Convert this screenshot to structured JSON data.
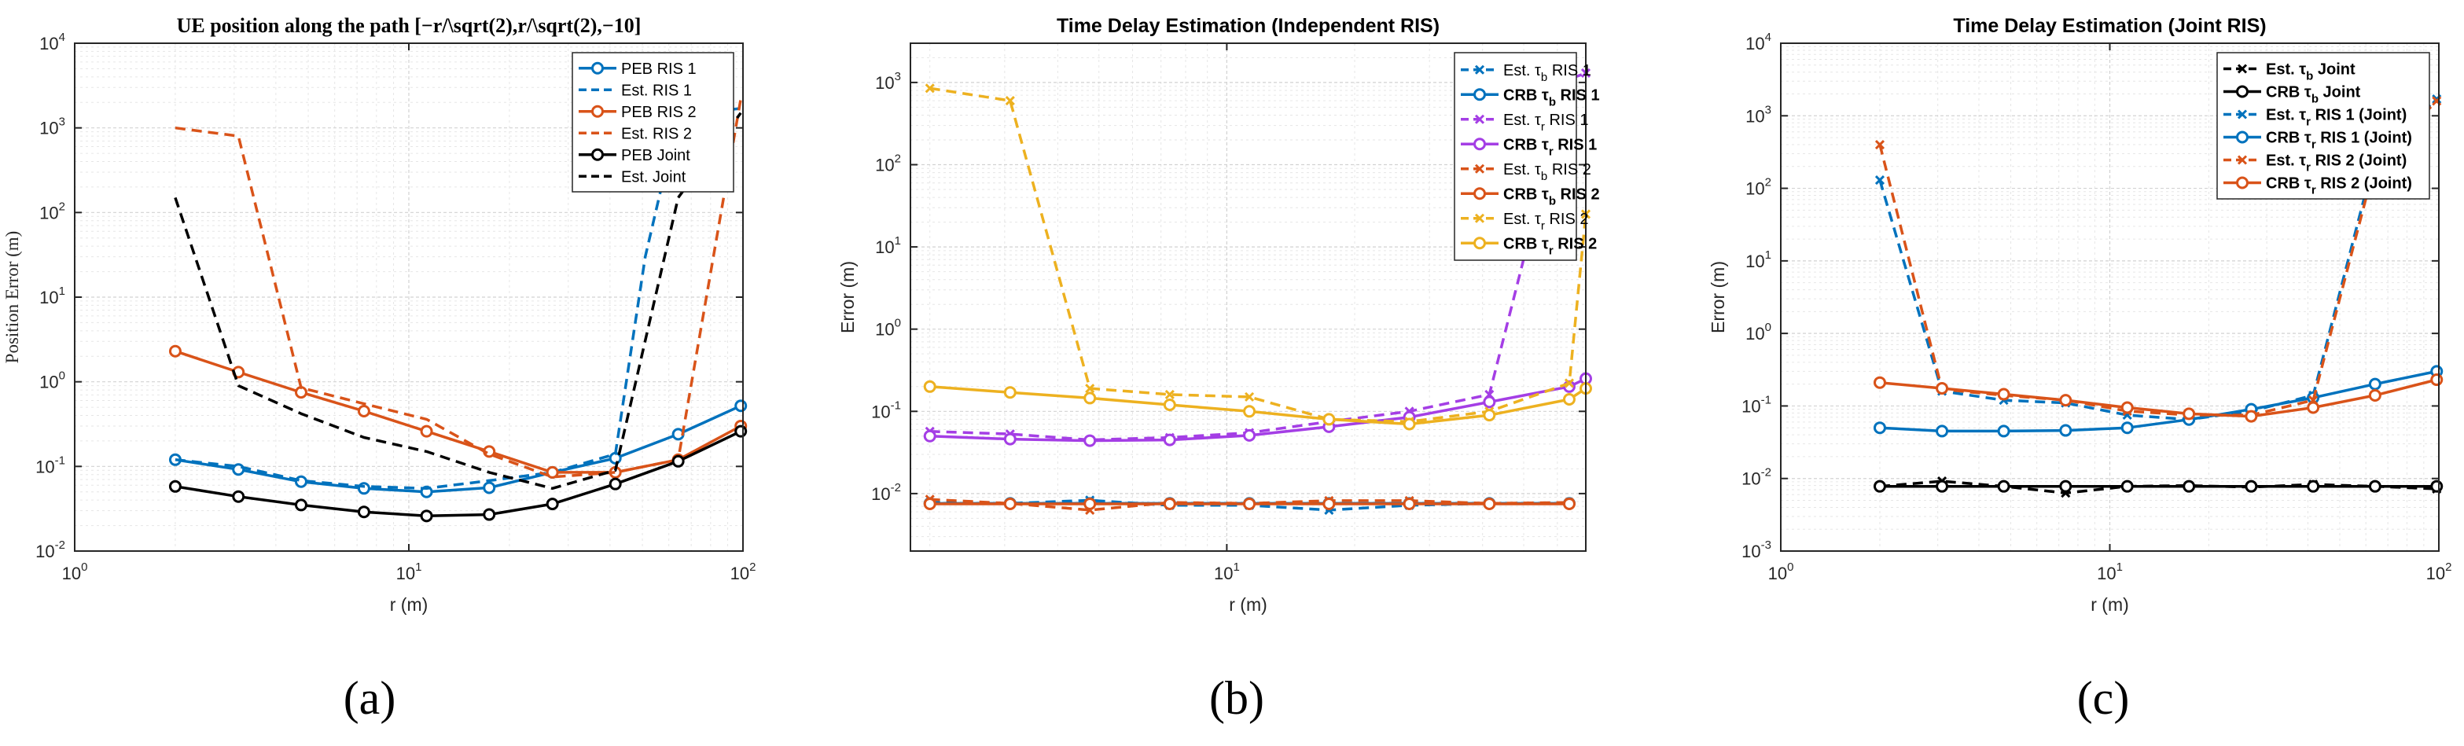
{
  "colors": {
    "blue": "#0072BD",
    "orange": "#D95319",
    "black": "#000000",
    "purple": "#A43EE5",
    "yellow": "#EDB120"
  },
  "panel_labels": [
    "(a)",
    "(b)",
    "(c)"
  ],
  "chart_data": [
    {
      "type": "line",
      "title": "UE position along the path [−r/\\sqrt(2),r/\\sqrt(2),−10]",
      "xlabel": "r (m)",
      "ylabel": "Position Error (m)",
      "xscale": "log",
      "yscale": "log",
      "xlim": [
        1,
        100
      ],
      "ylim": [
        0.01,
        10000
      ],
      "xticks": [
        {
          "base": "10",
          "exp": "0"
        },
        {
          "base": "10",
          "exp": "1"
        },
        {
          "base": "10",
          "exp": "2"
        }
      ],
      "yticks": [
        {
          "base": "10",
          "exp": "-2"
        },
        {
          "base": "10",
          "exp": "-1"
        },
        {
          "base": "10",
          "exp": "0"
        },
        {
          "base": "10",
          "exp": "1"
        },
        {
          "base": "10",
          "exp": "2"
        },
        {
          "base": "10",
          "exp": "3"
        },
        {
          "base": "10",
          "exp": "4"
        }
      ],
      "legend_position": "top-right",
      "series": [
        {
          "name": "PEB RIS 1",
          "color": "blue",
          "style": "solid",
          "marker": "circle",
          "x": [
            2,
            3.09,
            4.76,
            7.34,
            11.3,
            17.4,
            26.9,
            41.5,
            64,
            98.5
          ],
          "y": [
            0.12,
            0.092,
            0.066,
            0.055,
            0.05,
            0.056,
            0.085,
            0.125,
            0.24,
            0.52
          ]
        },
        {
          "name": "Est. RIS 1",
          "color": "blue",
          "style": "dashed",
          "marker": "none",
          "x": [
            2,
            3.09,
            4.76,
            7.34,
            11.3,
            17.4,
            26.9,
            41.5,
            51,
            64,
            98.5
          ],
          "y": [
            0.12,
            0.1,
            0.068,
            0.058,
            0.055,
            0.068,
            0.085,
            0.14,
            30,
            1400,
            1700
          ]
        },
        {
          "name": "PEB RIS 2",
          "color": "orange",
          "style": "solid",
          "marker": "circle",
          "x": [
            2,
            3.09,
            4.76,
            7.34,
            11.3,
            17.4,
            26.9,
            41.5,
            64,
            98.5
          ],
          "y": [
            2.3,
            1.3,
            0.75,
            0.45,
            0.26,
            0.15,
            0.085,
            0.085,
            0.12,
            0.3
          ]
        },
        {
          "name": "Est. RIS 2",
          "color": "orange",
          "style": "dashed",
          "marker": "none",
          "x": [
            2,
            3.09,
            4.76,
            7.34,
            11.3,
            17.4,
            26.9,
            41.5,
            64,
            98.5
          ],
          "y": [
            1000,
            800,
            0.85,
            0.55,
            0.36,
            0.14,
            0.075,
            0.085,
            0.12,
            2200
          ]
        },
        {
          "name": "PEB Joint",
          "color": "black",
          "style": "solid",
          "marker": "circle",
          "x": [
            2,
            3.09,
            4.76,
            7.34,
            11.3,
            17.4,
            26.9,
            41.5,
            64,
            98.5
          ],
          "y": [
            0.058,
            0.044,
            0.035,
            0.029,
            0.026,
            0.027,
            0.036,
            0.062,
            0.115,
            0.26
          ]
        },
        {
          "name": "Est. Joint",
          "color": "black",
          "style": "dashed",
          "marker": "none",
          "x": [
            2,
            3.09,
            4.76,
            7.34,
            11.3,
            17.4,
            26.9,
            41.5,
            64,
            98.5
          ],
          "y": [
            150,
            0.9,
            0.42,
            0.22,
            0.15,
            0.085,
            0.055,
            0.09,
            150,
            1500
          ]
        }
      ]
    },
    {
      "type": "line",
      "title": "Time Delay Estimation (Independent RIS)",
      "xlabel": "r (m)",
      "ylabel": "Error (m)",
      "xscale": "log",
      "yscale": "log",
      "xlim": [
        1.8,
        70
      ],
      "ylim": [
        0.002,
        3000
      ],
      "xticks": [
        {
          "base": "10",
          "exp": "1"
        }
      ],
      "yticks": [
        {
          "base": "10",
          "exp": "-2"
        },
        {
          "base": "10",
          "exp": "-1"
        },
        {
          "base": "10",
          "exp": "0"
        },
        {
          "base": "10",
          "exp": "1"
        },
        {
          "base": "10",
          "exp": "2"
        },
        {
          "base": "10",
          "exp": "3"
        }
      ],
      "legend_position": "top-right",
      "series": [
        {
          "name": "Est. τ_b RIS 1",
          "label_prefix": "Est. τ",
          "label_sub": "b",
          "label_suffix": " RIS 1",
          "color": "blue",
          "style": "dashed",
          "marker": "cross",
          "x": [
            2,
            3.09,
            4.76,
            7.34,
            11.3,
            17.4,
            26.9,
            41.5,
            64
          ],
          "y": [
            0.0078,
            0.0076,
            0.0083,
            0.0072,
            0.0072,
            0.0063,
            0.0072,
            0.0076,
            0.0076
          ]
        },
        {
          "name": "CRB τ_b RIS 1",
          "label_prefix": "CRB τ",
          "label_sub": "b",
          "label_suffix": " RIS 1",
          "bold": true,
          "color": "blue",
          "style": "solid",
          "marker": "circle",
          "x": [
            2,
            3.09,
            4.76,
            7.34,
            11.3,
            17.4,
            26.9,
            41.5,
            64
          ],
          "y": [
            0.0076,
            0.0076,
            0.0076,
            0.0076,
            0.0076,
            0.0076,
            0.0076,
            0.0076,
            0.0076
          ]
        },
        {
          "name": "Est. τ_r RIS 1",
          "label_prefix": "Est. τ",
          "label_sub": "r",
          "label_suffix": " RIS 1",
          "color": "purple",
          "style": "dashed",
          "marker": "cross",
          "x": [
            2,
            3.09,
            4.76,
            7.34,
            11.3,
            17.4,
            26.9,
            41.5,
            64,
            70
          ],
          "y": [
            0.057,
            0.053,
            0.045,
            0.048,
            0.055,
            0.075,
            0.1,
            0.16,
            1100,
            1300
          ]
        },
        {
          "name": "CRB τ_r RIS 1",
          "label_prefix": "CRB τ",
          "label_sub": "r",
          "label_suffix": " RIS 1",
          "bold": true,
          "color": "purple",
          "style": "solid",
          "marker": "circle",
          "x": [
            2,
            3.09,
            4.76,
            7.34,
            11.3,
            17.4,
            26.9,
            41.5,
            64,
            70
          ],
          "y": [
            0.05,
            0.046,
            0.044,
            0.045,
            0.051,
            0.065,
            0.085,
            0.13,
            0.2,
            0.25
          ]
        },
        {
          "name": "Est. τ_b RIS 2",
          "label_prefix": "Est. τ",
          "label_sub": "b",
          "label_suffix": " RIS 2",
          "color": "orange",
          "style": "dashed",
          "marker": "cross",
          "x": [
            2,
            3.09,
            4.76,
            7.34,
            11.3,
            17.4,
            26.9,
            41.5,
            64
          ],
          "y": [
            0.0085,
            0.0076,
            0.0063,
            0.0078,
            0.0076,
            0.0082,
            0.0082,
            0.0076,
            0.0078
          ]
        },
        {
          "name": "CRB τ_b RIS 2",
          "label_prefix": "CRB τ",
          "label_sub": "b",
          "label_suffix": " RIS 2",
          "bold": true,
          "color": "orange",
          "style": "solid",
          "marker": "circle",
          "x": [
            2,
            3.09,
            4.76,
            7.34,
            11.3,
            17.4,
            26.9,
            41.5,
            64
          ],
          "y": [
            0.0075,
            0.0075,
            0.0075,
            0.0075,
            0.0075,
            0.0075,
            0.0075,
            0.0075,
            0.0075
          ]
        },
        {
          "name": "Est. τ_r RIS 2",
          "label_prefix": "Est. τ",
          "label_sub": "r",
          "label_suffix": " RIS 2",
          "color": "yellow",
          "style": "dashed",
          "marker": "cross",
          "x": [
            2,
            3.09,
            4.76,
            7.34,
            11.3,
            17.4,
            26.9,
            41.5,
            64,
            70
          ],
          "y": [
            850,
            600,
            0.19,
            0.16,
            0.15,
            0.08,
            0.075,
            0.1,
            0.22,
            25
          ]
        },
        {
          "name": "CRB τ_r RIS 2",
          "label_prefix": "CRB τ",
          "label_sub": "r",
          "label_suffix": " RIS 2",
          "bold": true,
          "color": "yellow",
          "style": "solid",
          "marker": "circle",
          "x": [
            2,
            3.09,
            4.76,
            7.34,
            11.3,
            17.4,
            26.9,
            41.5,
            64,
            70
          ],
          "y": [
            0.2,
            0.17,
            0.145,
            0.12,
            0.1,
            0.08,
            0.07,
            0.09,
            0.14,
            0.19
          ]
        }
      ]
    },
    {
      "type": "line",
      "title": "Time Delay Estimation (Joint RIS)",
      "xlabel": "r (m)",
      "ylabel": "Error (m)",
      "xscale": "log",
      "yscale": "log",
      "xlim": [
        1,
        100
      ],
      "ylim": [
        0.001,
        10000
      ],
      "xticks": [
        {
          "base": "10",
          "exp": "0"
        },
        {
          "base": "10",
          "exp": "1"
        },
        {
          "base": "10",
          "exp": "2"
        }
      ],
      "yticks": [
        {
          "base": "10",
          "exp": "-3"
        },
        {
          "base": "10",
          "exp": "-2"
        },
        {
          "base": "10",
          "exp": "-1"
        },
        {
          "base": "10",
          "exp": "0"
        },
        {
          "base": "10",
          "exp": "1"
        },
        {
          "base": "10",
          "exp": "2"
        },
        {
          "base": "10",
          "exp": "3"
        },
        {
          "base": "10",
          "exp": "4"
        }
      ],
      "legend_position": "top-right",
      "series": [
        {
          "name": "Est. τ_b Joint",
          "label_prefix": "Est. τ",
          "label_sub": "b",
          "label_suffix": " Joint",
          "bold": true,
          "color": "black",
          "style": "dashed",
          "marker": "cross",
          "x": [
            2,
            3.09,
            4.76,
            7.34,
            11.3,
            17.4,
            26.9,
            41.5,
            64,
            98.5
          ],
          "y": [
            0.0078,
            0.0092,
            0.0078,
            0.0063,
            0.0078,
            0.008,
            0.0076,
            0.0083,
            0.0078,
            0.0072
          ]
        },
        {
          "name": "CRB τ_b Joint",
          "label_prefix": "CRB τ",
          "label_sub": "b",
          "label_suffix": " Joint",
          "bold": true,
          "color": "black",
          "style": "solid",
          "marker": "circle",
          "x": [
            2,
            3.09,
            4.76,
            7.34,
            11.3,
            17.4,
            26.9,
            41.5,
            64,
            98.5
          ],
          "y": [
            0.0078,
            0.0078,
            0.0078,
            0.0078,
            0.0078,
            0.0078,
            0.0078,
            0.0078,
            0.0078,
            0.0078
          ]
        },
        {
          "name": "Est. τ_r RIS 1 (Joint)",
          "label_prefix": "Est. τ",
          "label_sub": "r",
          "label_suffix": " RIS 1 (Joint)",
          "bold": true,
          "color": "blue",
          "style": "dashed",
          "marker": "cross",
          "x": [
            2,
            3.09,
            4.76,
            7.34,
            11.3,
            17.4,
            26.9,
            41.5,
            64,
            98.5
          ],
          "y": [
            130,
            0.16,
            0.12,
            0.11,
            0.075,
            0.065,
            0.085,
            0.14,
            280,
            1700
          ]
        },
        {
          "name": "CRB τ_r RIS 1 (Joint)",
          "label_prefix": "CRB τ",
          "label_sub": "r",
          "label_suffix": " RIS 1 (Joint)",
          "bold": true,
          "color": "blue",
          "style": "solid",
          "marker": "circle",
          "x": [
            2,
            3.09,
            4.76,
            7.34,
            11.3,
            17.4,
            26.9,
            41.5,
            64,
            98.5
          ],
          "y": [
            0.05,
            0.045,
            0.045,
            0.046,
            0.05,
            0.065,
            0.09,
            0.13,
            0.2,
            0.3
          ]
        },
        {
          "name": "Est. τ_r RIS 2 (Joint)",
          "label_prefix": "Est. τ",
          "label_sub": "r",
          "label_suffix": " RIS 2 (Joint)",
          "bold": true,
          "color": "orange",
          "style": "dashed",
          "marker": "cross",
          "x": [
            2,
            3.09,
            4.76,
            7.34,
            11.3,
            17.4,
            26.9,
            41.5,
            64,
            98.5
          ],
          "y": [
            400,
            0.17,
            0.14,
            0.12,
            0.085,
            0.075,
            0.075,
            0.12,
            220,
            1600
          ]
        },
        {
          "name": "CRB τ_r RIS 2 (Joint)",
          "label_prefix": "CRB τ",
          "label_sub": "r",
          "label_suffix": " RIS 2 (Joint)",
          "bold": true,
          "color": "orange",
          "style": "solid",
          "marker": "circle",
          "x": [
            2,
            3.09,
            4.76,
            7.34,
            11.3,
            17.4,
            26.9,
            41.5,
            64,
            98.5
          ],
          "y": [
            0.21,
            0.175,
            0.145,
            0.12,
            0.095,
            0.078,
            0.072,
            0.095,
            0.14,
            0.23
          ]
        }
      ]
    }
  ]
}
